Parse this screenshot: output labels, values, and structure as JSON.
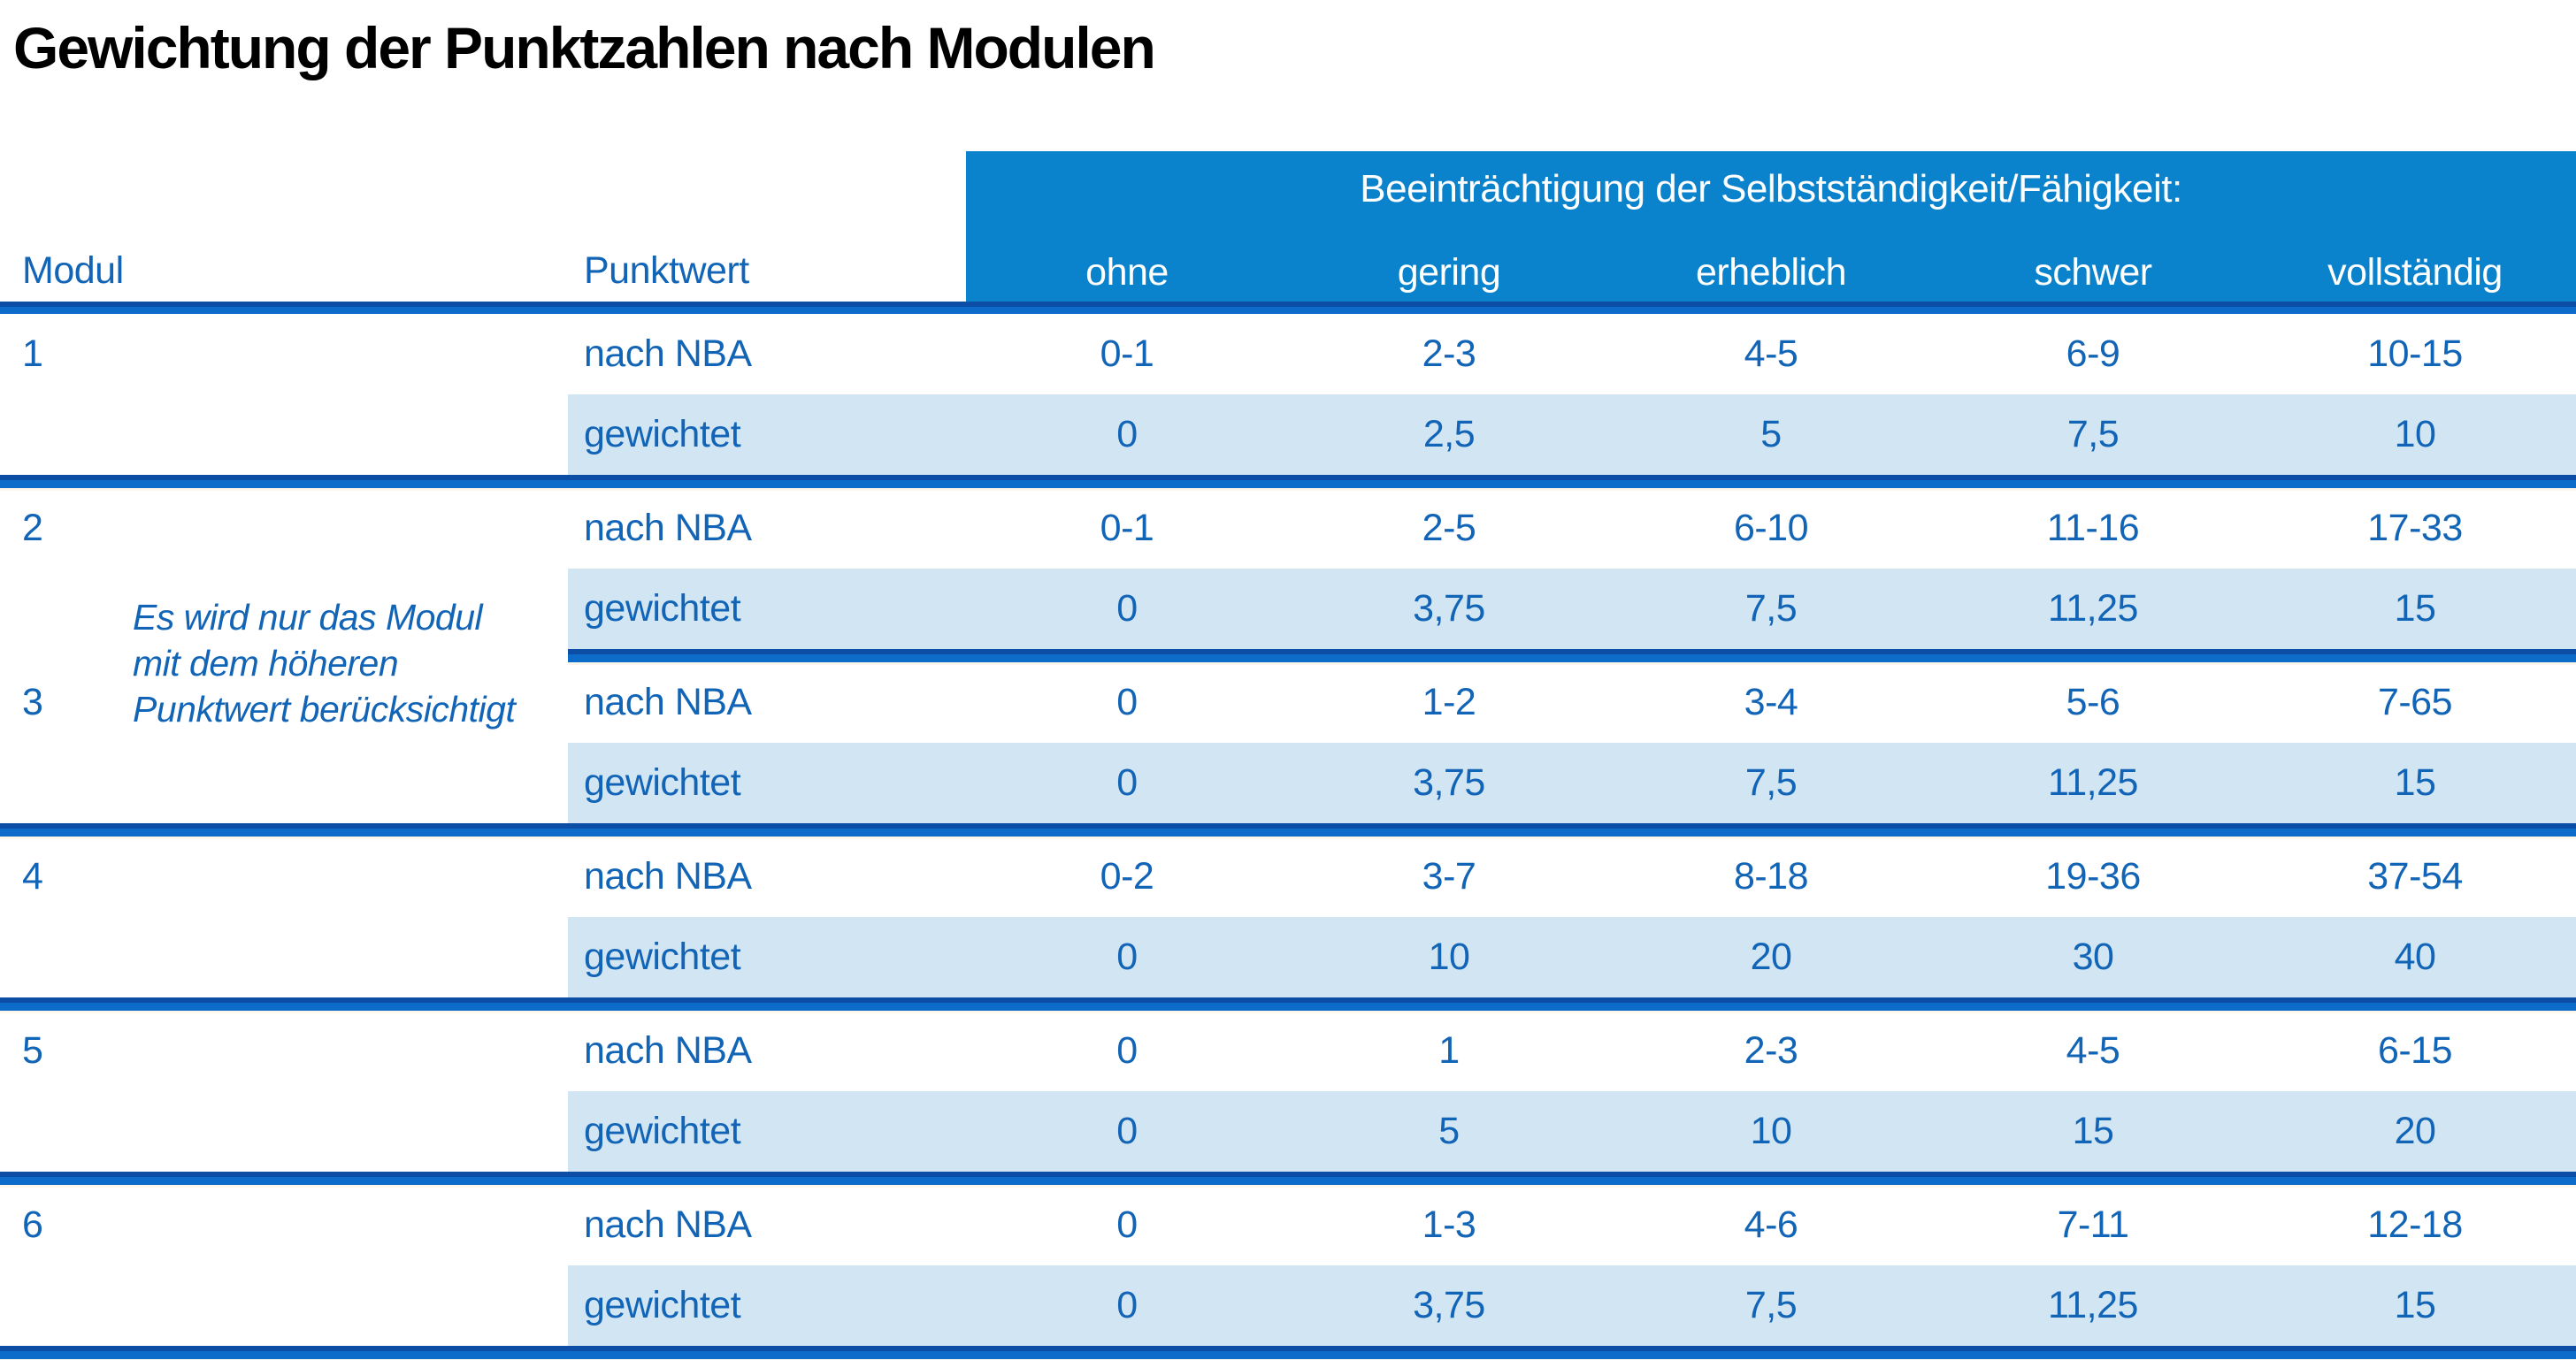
{
  "page": {
    "title": "Gewichtung der Punktzahlen nach Modulen"
  },
  "table": {
    "group_header": "Beeinträchtigung der Selbstständigkeit/Fähigkeit:",
    "modul_header": "Modul",
    "punktwert_header": "Punktwert",
    "severity_labels": [
      "ohne",
      "gering",
      "erheblich",
      "schwer",
      "vollständig"
    ],
    "row_labels": {
      "nba": "nach NBA",
      "weighted": "gewichtet"
    },
    "note": "Es wird nur das Modul mit dem höheren Punktwert berücksichtigt",
    "note_lines": [
      "Es wird nur das Modul",
      "mit dem höheren",
      "Punktwert berücksichtigt"
    ],
    "modules": [
      {
        "id": "1",
        "nba": [
          "0-1",
          "2-3",
          "4-5",
          "6-9",
          "10-15"
        ],
        "weighted": [
          "0",
          "2,5",
          "5",
          "7,5",
          "10"
        ]
      },
      {
        "id": "2",
        "nba": [
          "0-1",
          "2-5",
          "6-10",
          "11-16",
          "17-33"
        ],
        "weighted": [
          "0",
          "3,75",
          "7,5",
          "11,25",
          "15"
        ]
      },
      {
        "id": "3",
        "nba": [
          "0",
          "1-2",
          "3-4",
          "5-6",
          "7-65"
        ],
        "weighted": [
          "0",
          "3,75",
          "7,5",
          "11,25",
          "15"
        ]
      },
      {
        "id": "4",
        "nba": [
          "0-2",
          "3-7",
          "8-18",
          "19-36",
          "37-54"
        ],
        "weighted": [
          "0",
          "10",
          "20",
          "30",
          "40"
        ]
      },
      {
        "id": "5",
        "nba": [
          "0",
          "1",
          "2-3",
          "4-5",
          "6-15"
        ],
        "weighted": [
          "0",
          "5",
          "10",
          "15",
          "20"
        ]
      },
      {
        "id": "6",
        "nba": [
          "0",
          "1-3",
          "4-6",
          "7-11",
          "12-18"
        ],
        "weighted": [
          "0",
          "3,75",
          "7,5",
          "11,25",
          "15"
        ]
      }
    ]
  },
  "colors": {
    "header_fill": "#0a82cc",
    "header_text": "#ffffff",
    "row_highlight": "#d2e5f3",
    "text_blue": "#1164b6",
    "rule_navy": "#0c4ea6",
    "rule_blue": "#0d6bc9",
    "title_black": "#000000"
  }
}
